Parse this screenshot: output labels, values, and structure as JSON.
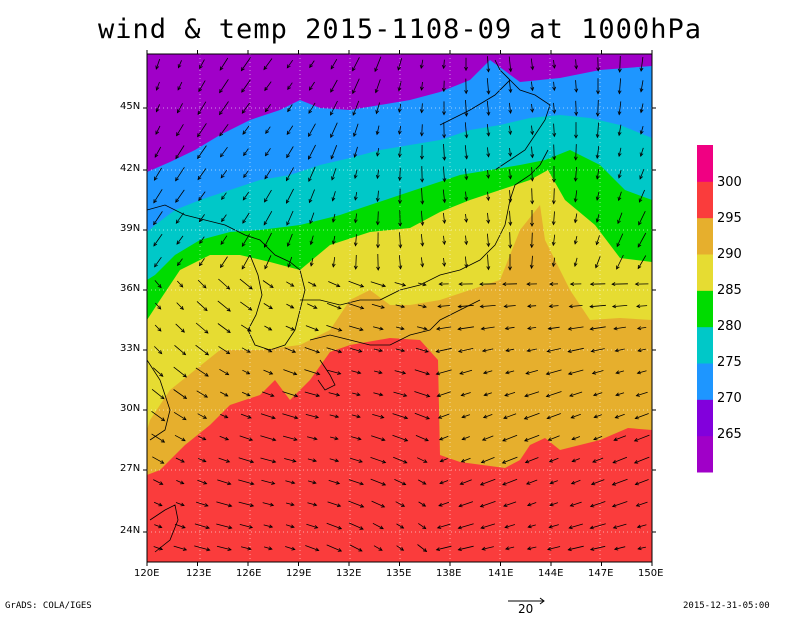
{
  "title": "wind & temp 2015-1108-09 at 1000hPa",
  "lat_labels": [
    "45N",
    "42N",
    "39N",
    "36N",
    "33N",
    "30N",
    "27N",
    "24N"
  ],
  "lon_labels": [
    "120E",
    "123E",
    "126E",
    "129E",
    "132E",
    "135E",
    "138E",
    "141E",
    "144E",
    "147E",
    "150E"
  ],
  "colorbar": {
    "levels": [
      "265",
      "270",
      "275",
      "280",
      "285",
      "290",
      "295",
      "300"
    ],
    "colors": [
      "#a000c8",
      "#8200dc",
      "#1e96ff",
      "#00c8c8",
      "#00dc00",
      "#e6dc32",
      "#e6af2d",
      "#fa3c3c",
      "#f00082"
    ]
  },
  "reference_vector": {
    "label": "20"
  },
  "footer": {
    "left": "GrADS: COLA/IGES",
    "right": "2015-12-31-05:00"
  },
  "palette": {
    "purple": "#a000c8",
    "blue": "#1e96ff",
    "cyan": "#00c8c8",
    "green": "#00dc00",
    "yellow": "#e6dc32",
    "orange": "#e6af2d",
    "red": "#fa3c3c"
  }
}
